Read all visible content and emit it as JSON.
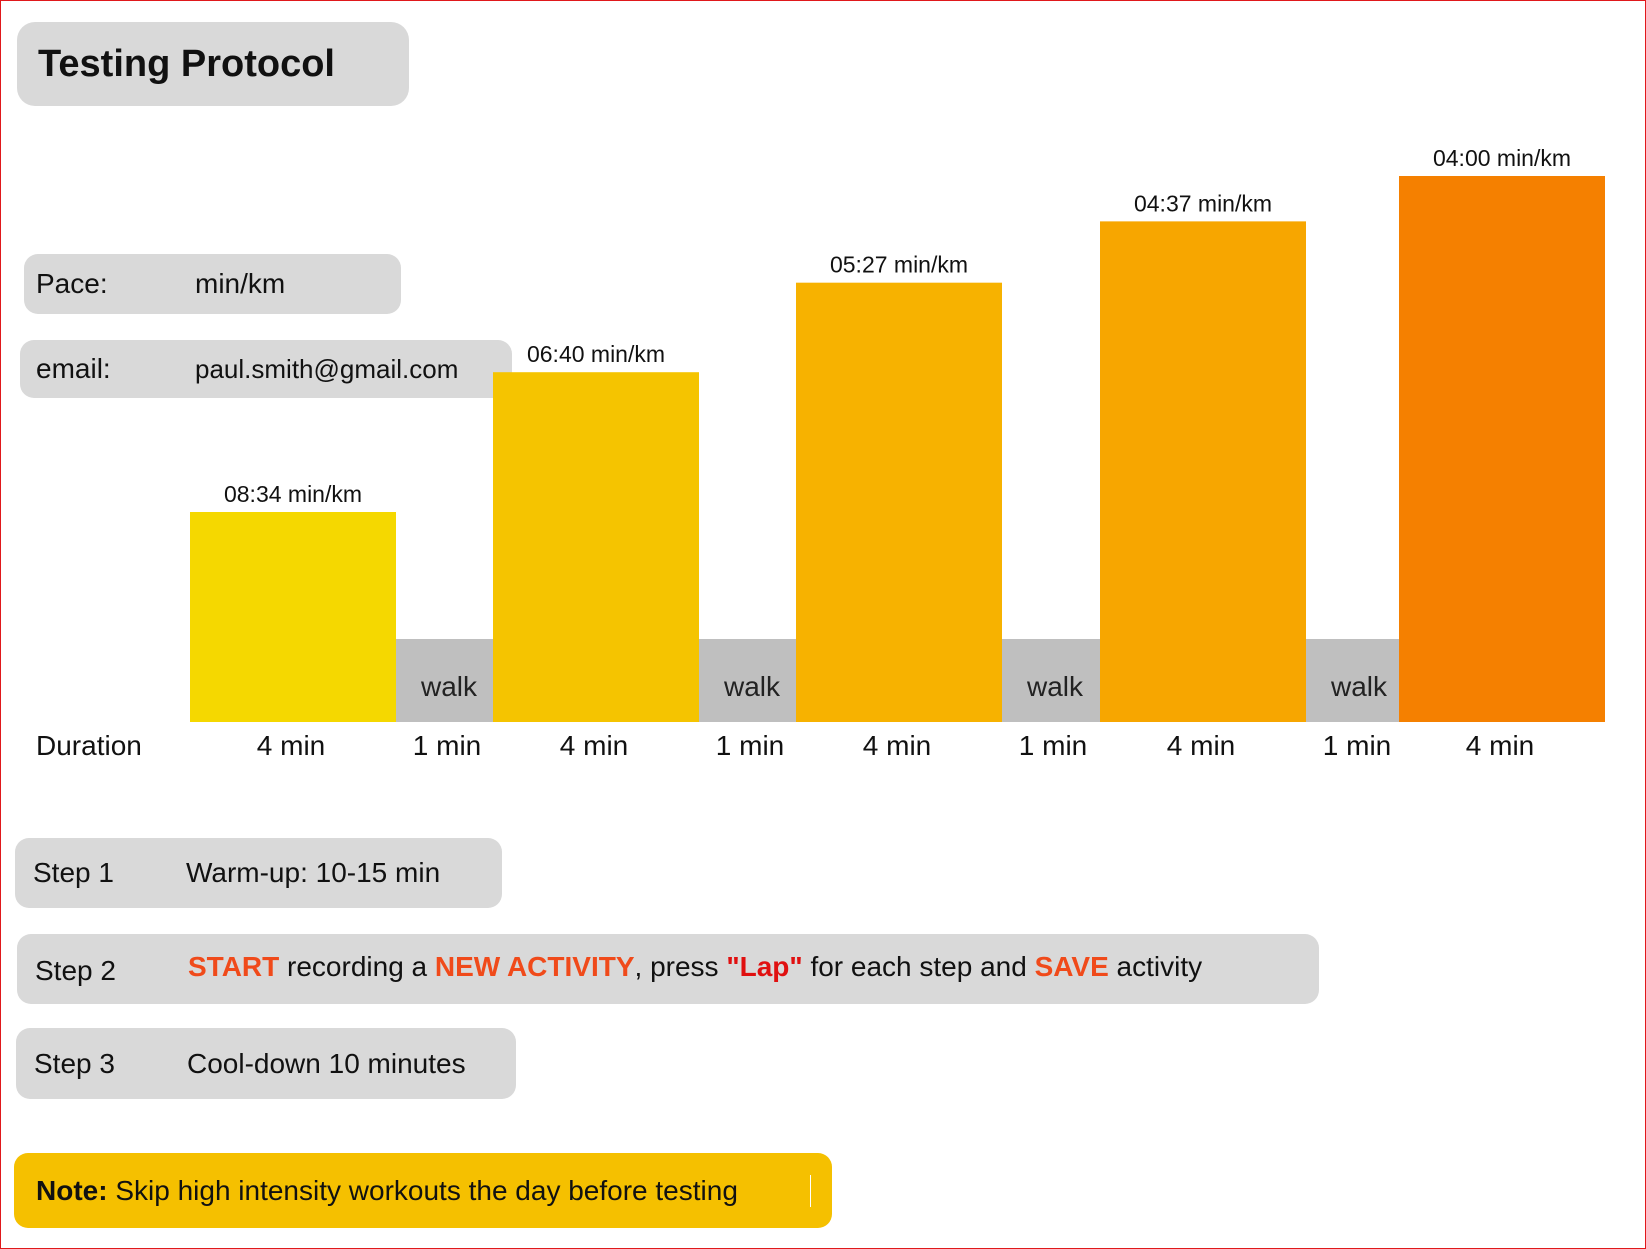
{
  "title": "Testing Protocol",
  "pace": {
    "label": "Pace:",
    "value": "min/km"
  },
  "email": {
    "label": "email:",
    "value": "paul.smith@gmail.com"
  },
  "duration_label": "Duration",
  "chart_data": {
    "type": "bar",
    "title": "",
    "segments": [
      {
        "kind": "run",
        "duration": "4 min",
        "pace_label": "08:34 min/km",
        "pace_seconds": 514,
        "color": "#f5d800"
      },
      {
        "kind": "walk",
        "duration": "1 min",
        "label": "walk",
        "color": "#bfbfbf"
      },
      {
        "kind": "run",
        "duration": "4 min",
        "pace_label": "06:40 min/km",
        "pace_seconds": 400,
        "color": "#f5c400"
      },
      {
        "kind": "walk",
        "duration": "1 min",
        "label": "walk",
        "color": "#bfbfbf"
      },
      {
        "kind": "run",
        "duration": "4 min",
        "pace_label": "05:27 min/km",
        "pace_seconds": 327,
        "color": "#f7b200"
      },
      {
        "kind": "walk",
        "duration": "1 min",
        "label": "walk",
        "color": "#bfbfbf"
      },
      {
        "kind": "run",
        "duration": "4 min",
        "pace_label": "04:37 min/km",
        "pace_seconds": 277,
        "color": "#f7a600"
      },
      {
        "kind": "walk",
        "duration": "1 min",
        "label": "walk",
        "color": "#bfbfbf"
      },
      {
        "kind": "run",
        "duration": "4 min",
        "pace_label": "04:00 min/km",
        "pace_seconds": 240,
        "color": "#f58000"
      }
    ]
  },
  "steps": [
    {
      "label": "Step 1",
      "text": "Warm-up: 10-15 min"
    },
    {
      "label": "Step 2",
      "parts": {
        "start": "START",
        "t1": " recording a ",
        "new_activity": "NEW ACTIVITY",
        "t2": ", press ",
        "lap": "\"Lap\"",
        "t3": " for each step and ",
        "save": "SAVE",
        "t4": " activity"
      }
    },
    {
      "label": "Step 3",
      "text": "Cool-down 10 minutes"
    }
  ],
  "note": {
    "label": "Note:",
    "text": " Skip high intensity workouts the day before testing"
  }
}
